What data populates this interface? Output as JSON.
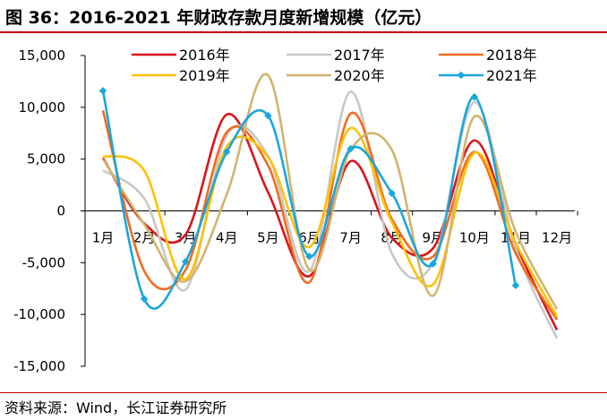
{
  "title": "图 36：2016-2021 年财政存款月度新增规模（亿元）",
  "source": "资料来源：Wind，长江证券研究所",
  "chart_data": {
    "type": "line",
    "title": "2016-2021 年财政存款月度新增规模（亿元）",
    "xlabel": "",
    "ylabel": "",
    "categories": [
      "1月",
      "2月",
      "3月",
      "4月",
      "5月",
      "6月",
      "7月",
      "8月",
      "9月",
      "10月",
      "11月",
      "12月"
    ],
    "ylim": [
      -15000,
      15000
    ],
    "yticks": [
      15000,
      10000,
      5000,
      0,
      -5000,
      -10000,
      -15000
    ],
    "ytick_labels": [
      "15,000",
      "10,000",
      "5,000",
      "0",
      "-5,000",
      "-10,000",
      "-15,000"
    ],
    "grid": false,
    "legend_position": "top",
    "series": [
      {
        "name": "2016年",
        "color": "#d9151b",
        "marker": false,
        "values": [
          5100,
          -1200,
          -2300,
          9300,
          1800,
          -6300,
          4800,
          -2600,
          -3600,
          6800,
          -3200,
          -11500
        ]
      },
      {
        "name": "2017年",
        "color": "#c8c8c8",
        "marker": false,
        "values": [
          3900,
          1200,
          -7600,
          7300,
          5300,
          -5800,
          11500,
          -4100,
          -5000,
          10500,
          -3600,
          -12300
        ]
      },
      {
        "name": "2018年",
        "color": "#f26b1f",
        "marker": false,
        "values": [
          9700,
          -5800,
          -5700,
          7600,
          4400,
          -6900,
          9400,
          -800,
          -4400,
          5700,
          -4100,
          -10500
        ]
      },
      {
        "name": "2019年",
        "color": "#ffc000",
        "marker": false,
        "values": [
          5300,
          3900,
          -6600,
          6200,
          5200,
          -3500,
          8000,
          -1100,
          -7100,
          5600,
          -3100,
          -10200
        ]
      },
      {
        "name": "2020年",
        "color": "#d2b46e",
        "marker": false,
        "values": [
          5000,
          -1300,
          -6800,
          1600,
          13100,
          -5700,
          5900,
          5900,
          -8200,
          9100,
          -2000,
          -9500
        ]
      },
      {
        "name": "2021年",
        "color": "#1aa7dc",
        "marker": true,
        "values": [
          11600,
          -8500,
          -4900,
          5700,
          9200,
          -4400,
          6000,
          1700,
          -5100,
          11000,
          -7200,
          null
        ]
      }
    ]
  }
}
